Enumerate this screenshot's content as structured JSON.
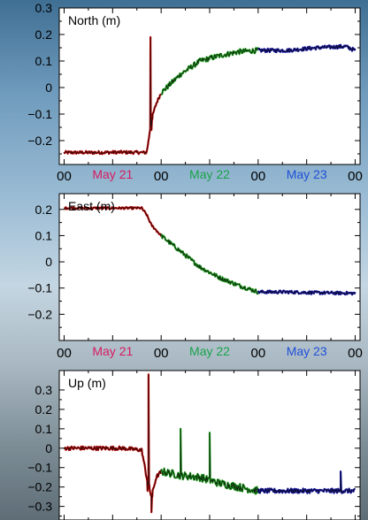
{
  "panels": [
    {
      "label": "North (m)",
      "yticks": [
        "0.3",
        "0.2",
        "0.1",
        "0",
        "−0.1",
        "−0.2"
      ],
      "ytick_values": [
        0.3,
        0.2,
        0.1,
        0,
        -0.1,
        -0.2
      ]
    },
    {
      "label": "East (m)",
      "yticks": [
        "0.2",
        "0.1",
        "0",
        "−0.1",
        "−0.2"
      ],
      "ytick_values": [
        0.2,
        0.1,
        0,
        -0.1,
        -0.2
      ]
    },
    {
      "label": "Up (m)",
      "yticks": [
        "0.3",
        "0.2",
        "0.1",
        "0",
        "−0.1",
        "−0.2",
        "−0.3"
      ],
      "ytick_values": [
        0.3,
        0.2,
        0.1,
        0,
        -0.1,
        -0.2,
        -0.3
      ]
    }
  ],
  "xaxis": {
    "hour_label": "00",
    "days": [
      {
        "label": "May 21",
        "color": "#d81b60"
      },
      {
        "label": "May 22",
        "color": "#1aa34a"
      },
      {
        "label": "May 23",
        "color": "#1e4fd8"
      }
    ]
  },
  "colors": {
    "day1": "#b30000",
    "day2": "#1a9a1a",
    "day3": "#1010a0",
    "trace": "#111111",
    "frame": "#000000",
    "panel_bg": "#ffffff"
  },
  "chart_data": [
    {
      "type": "line",
      "title": "North (m)",
      "xlabel": "",
      "ylabel": "",
      "x_unit": "days since May 21 00:00",
      "xlim": [
        -0.05,
        3.05
      ],
      "ylim": [
        -0.29,
        0.3
      ],
      "series": [
        {
          "x": [
            0.0,
            0.3,
            0.6,
            0.85,
            0.87,
            0.9,
            0.95,
            1.0
          ],
          "y": [
            -0.245,
            -0.245,
            -0.244,
            -0.245,
            -0.2,
            -0.12,
            -0.06,
            -0.02
          ]
        },
        {
          "x": [
            1.0,
            1.2,
            1.4,
            1.6,
            1.8,
            2.0
          ],
          "y": [
            -0.02,
            0.05,
            0.1,
            0.12,
            0.135,
            0.14
          ]
        },
        {
          "x": [
            2.0,
            2.3,
            2.6,
            2.9,
            3.0
          ],
          "y": [
            0.14,
            0.14,
            0.15,
            0.155,
            0.14
          ]
        }
      ]
    },
    {
      "type": "line",
      "title": "East (m)",
      "xlabel": "",
      "ylabel": "",
      "x_unit": "days since May 21 00:00",
      "xlim": [
        -0.05,
        3.05
      ],
      "ylim": [
        -0.3,
        0.26
      ],
      "series": [
        {
          "x": [
            0.0,
            0.4,
            0.8,
            0.85,
            0.9,
            0.95,
            1.0
          ],
          "y": [
            0.205,
            0.205,
            0.205,
            0.18,
            0.14,
            0.12,
            0.1
          ]
        },
        {
          "x": [
            1.0,
            1.2,
            1.4,
            1.6,
            1.8,
            2.0
          ],
          "y": [
            0.1,
            0.04,
            -0.02,
            -0.06,
            -0.09,
            -0.115
          ]
        },
        {
          "x": [
            2.0,
            2.3,
            2.6,
            3.0
          ],
          "y": [
            -0.115,
            -0.115,
            -0.118,
            -0.12
          ]
        }
      ]
    },
    {
      "type": "line",
      "title": "Up (m)",
      "xlabel": "",
      "ylabel": "",
      "x_unit": "days since May 21 00:00",
      "xlim": [
        -0.05,
        3.05
      ],
      "ylim": [
        -0.37,
        0.4
      ],
      "series": [
        {
          "x": [
            0.0,
            0.3,
            0.6,
            0.8,
            0.85,
            0.9,
            0.95,
            1.0
          ],
          "y": [
            0.0,
            0.0,
            0.0,
            -0.01,
            -0.15,
            -0.25,
            -0.15,
            -0.12
          ]
        },
        {
          "x": [
            1.0,
            1.2,
            1.4,
            1.6,
            1.8,
            2.0
          ],
          "y": [
            -0.12,
            -0.14,
            -0.15,
            -0.18,
            -0.2,
            -0.22
          ]
        },
        {
          "x": [
            2.0,
            2.3,
            2.6,
            3.0
          ],
          "y": [
            -0.22,
            -0.22,
            -0.22,
            -0.22
          ]
        }
      ]
    }
  ]
}
